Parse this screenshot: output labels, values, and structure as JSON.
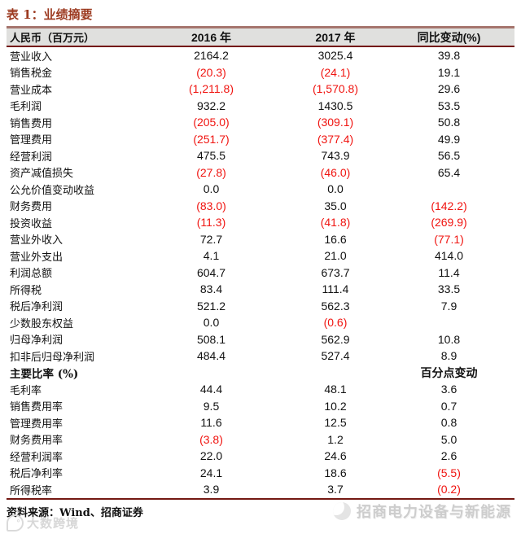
{
  "title": "表 1：业绩摘要",
  "colors": {
    "title_red": "#9c3a20",
    "rule_light": "#a5756d",
    "rule_dark": "#741812",
    "header_bg": "#e0e0de",
    "neg_red": "#f01410"
  },
  "table": {
    "headers": [
      "人民币（百万元）",
      "2016 年",
      "2017 年",
      "同比变动(%)"
    ],
    "rows": [
      {
        "label": "营业收入",
        "y2016": "2164.2",
        "y2017": "3025.4",
        "yoy": "39.8"
      },
      {
        "label": "销售税金",
        "y2016": "(20.3)",
        "y2017": "(24.1)",
        "yoy": "19.1"
      },
      {
        "label": "营业成本",
        "y2016": "(1,211.8)",
        "y2017": "(1,570.8)",
        "yoy": "29.6"
      },
      {
        "label": "毛利润",
        "y2016": "932.2",
        "y2017": "1430.5",
        "yoy": "53.5"
      },
      {
        "label": "销售费用",
        "y2016": "(205.0)",
        "y2017": "(309.1)",
        "yoy": "50.8"
      },
      {
        "label": "管理费用",
        "y2016": "(251.7)",
        "y2017": "(377.4)",
        "yoy": "49.9"
      },
      {
        "label": "经营利润",
        "y2016": "475.5",
        "y2017": "743.9",
        "yoy": "56.5"
      },
      {
        "label": "资产减值损失",
        "y2016": "(27.8)",
        "y2017": "(46.0)",
        "yoy": "65.4"
      },
      {
        "label": "公允价值变动收益",
        "y2016": "0.0",
        "y2017": "0.0",
        "yoy": ""
      },
      {
        "label": "财务费用",
        "y2016": "(83.0)",
        "y2017": "35.0",
        "yoy": "(142.2)"
      },
      {
        "label": "投资收益",
        "y2016": "(11.3)",
        "y2017": "(41.8)",
        "yoy": "(269.9)"
      },
      {
        "label": "营业外收入",
        "y2016": "72.7",
        "y2017": "16.6",
        "yoy": "(77.1)"
      },
      {
        "label": "营业外支出",
        "y2016": "4.1",
        "y2017": "21.0",
        "yoy": "414.0"
      },
      {
        "label": "利润总额",
        "y2016": "604.7",
        "y2017": "673.7",
        "yoy": "11.4"
      },
      {
        "label": "所得税",
        "y2016": "83.4",
        "y2017": "111.4",
        "yoy": "33.5"
      },
      {
        "label": "税后净利润",
        "y2016": "521.2",
        "y2017": "562.3",
        "yoy": "7.9"
      },
      {
        "label": "少数股东权益",
        "y2016": "0.0",
        "y2017": "(0.6)",
        "yoy": ""
      },
      {
        "label": "归母净利润",
        "y2016": "508.1",
        "y2017": "562.9",
        "yoy": "10.8"
      },
      {
        "label": "扣非后归母净利润",
        "y2016": "484.4",
        "y2017": "527.4",
        "yoy": "8.9"
      },
      {
        "label": "主要比率 (%)",
        "y2016": "",
        "y2017": "",
        "yoy": "百分点变动",
        "bold": true
      },
      {
        "label": "毛利率",
        "y2016": "44.4",
        "y2017": "48.1",
        "yoy": "3.6"
      },
      {
        "label": "销售费用率",
        "y2016": "9.5",
        "y2017": "10.2",
        "yoy": "0.7"
      },
      {
        "label": "管理费用率",
        "y2016": "11.6",
        "y2017": "12.5",
        "yoy": "0.8"
      },
      {
        "label": "财务费用率",
        "y2016": "(3.8)",
        "y2017": "1.2",
        "yoy": "5.0"
      },
      {
        "label": "经营利润率",
        "y2016": "22.0",
        "y2017": "24.6",
        "yoy": "2.6"
      },
      {
        "label": "税后净利率",
        "y2016": "24.1",
        "y2017": "18.6",
        "yoy": "(5.5)"
      },
      {
        "label": "所得税率",
        "y2016": "3.9",
        "y2017": "3.7",
        "yoy": "(0.2)"
      }
    ]
  },
  "footer": {
    "source": "资料来源：Wind、招商证券"
  },
  "watermarks": {
    "bottom_left_text": "大数跨境",
    "bottom_right_text": "招商电力设备与新能源"
  }
}
